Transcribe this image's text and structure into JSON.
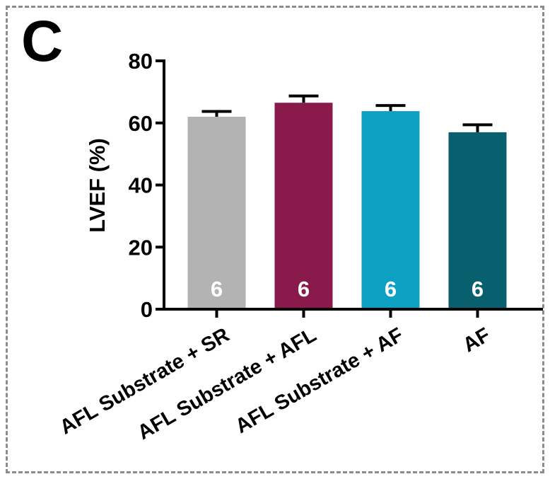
{
  "panel_label": "C",
  "chart_data": {
    "type": "bar",
    "title": "",
    "xlabel": "",
    "ylabel": "LVEF (%)",
    "ylim": [
      0,
      80
    ],
    "yticks": [
      0,
      20,
      40,
      60,
      80
    ],
    "categories": [
      "AFL Substrate + SR",
      "AFL Substrate + AFL",
      "AFL Substrate + AF",
      "AF"
    ],
    "values": [
      62,
      66.5,
      63.8,
      57
    ],
    "errors": [
      1.7,
      2.2,
      1.8,
      2.4
    ],
    "n_labels": [
      "6",
      "6",
      "6",
      "6"
    ],
    "colors": [
      "#b3b3b3",
      "#8a1a4b",
      "#0ca0c2",
      "#08606e"
    ],
    "grid": false,
    "legend": "none"
  }
}
